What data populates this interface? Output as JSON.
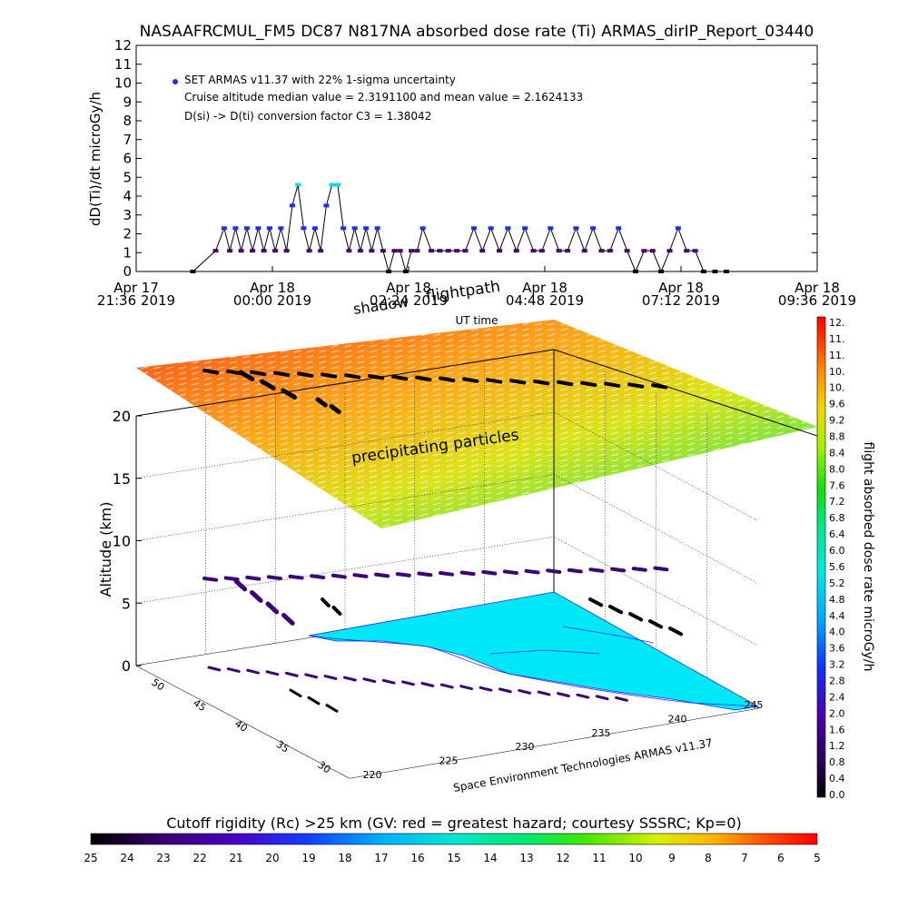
{
  "chart_data": [
    {
      "type": "scatter",
      "title": "NASAAFRCMUL_FM5 DC87 N817NA absorbed dose rate (Ti) ARMAS_dirIP_Report_03440",
      "ylabel": "dD(Ti)/dt microGy/h",
      "xlabel": "UT time",
      "ylim": [
        0,
        12
      ],
      "yticks": [
        0,
        1,
        2,
        3,
        4,
        5,
        6,
        7,
        8,
        9,
        10,
        11,
        12
      ],
      "xlim_hours": [
        0,
        12
      ],
      "xtick_labels": [
        {
          "line1": "Apr 17",
          "line2": "21:36 2019",
          "h": 0
        },
        {
          "line1": "Apr 18",
          "line2": "00:00 2019",
          "h": 2.4
        },
        {
          "line1": "Apr 18",
          "line2": "02:24 2019",
          "h": 4.8
        },
        {
          "line1": "Apr 18",
          "line2": "04:48 2019",
          "h": 7.2
        },
        {
          "line1": "Apr 18",
          "line2": "07:12 2019",
          "h": 9.6
        },
        {
          "line1": "Apr 18",
          "line2": "09:36 2019",
          "h": 12
        }
      ],
      "legend": {
        "entry": "SET ARMAS v11.37 with 22% 1-sigma uncertainty",
        "note1": "Cruise altitude median value = 2.3191100 and mean value = 2.1624133",
        "note2": "D(si) -> D(ti) conversion factor C3 = 1.38042",
        "position": "top-left"
      },
      "series": [
        {
          "x_hours": [
            1.0,
            1.4,
            1.55,
            1.65,
            1.75,
            1.85,
            1.95,
            2.05,
            2.15,
            2.25,
            2.35,
            2.45,
            2.55,
            2.65,
            2.75,
            2.85,
            2.95,
            3.05,
            3.15,
            3.25,
            3.35,
            3.45,
            3.55,
            3.65,
            3.75,
            3.85,
            3.95,
            4.05,
            4.15,
            4.25,
            4.35,
            4.45,
            4.55,
            4.65,
            4.75,
            4.85,
            4.95,
            5.05,
            5.2,
            5.35,
            5.5,
            5.65,
            5.8,
            5.95,
            6.1,
            6.25,
            6.4,
            6.55,
            6.7,
            6.85,
            7.0,
            7.15,
            7.3,
            7.45,
            7.6,
            7.75,
            7.9,
            8.05,
            8.2,
            8.35,
            8.5,
            8.65,
            8.8,
            8.95,
            9.1,
            9.25,
            9.4,
            9.55,
            9.7,
            9.85,
            10.0,
            10.2,
            10.4
          ],
          "values": [
            0,
            1.1,
            2.3,
            1.1,
            2.3,
            1.1,
            2.3,
            1.1,
            2.3,
            1.1,
            2.3,
            1.1,
            2.3,
            1.1,
            3.5,
            4.6,
            2.3,
            1.1,
            2.3,
            1.1,
            3.5,
            4.6,
            4.6,
            2.3,
            1.1,
            2.3,
            1.1,
            2.3,
            1.1,
            2.3,
            1.1,
            0,
            1.1,
            1.1,
            0,
            1.1,
            1.1,
            2.3,
            1.1,
            1.1,
            1.1,
            1.1,
            1.1,
            2.3,
            1.1,
            2.3,
            1.1,
            2.3,
            1.1,
            2.3,
            1.1,
            1.1,
            2.3,
            1.1,
            1.1,
            2.3,
            1.1,
            2.3,
            1.1,
            1.1,
            2.3,
            1.1,
            0,
            1.1,
            1.1,
            0,
            1.1,
            2.3,
            1.1,
            1.1,
            0,
            0,
            0
          ]
        }
      ]
    },
    {
      "type": "heatmap",
      "title": "",
      "annotations": [
        "shadow",
        "flightpath",
        "precipitating particles",
        "Space Environment Technologies ARMAS v11.37"
      ],
      "zlabel": "Altitude (km)",
      "zticks": [
        0,
        5,
        10,
        15,
        20
      ],
      "lat_ticks": [
        30,
        35,
        40,
        45,
        50
      ],
      "lon_ticks": [
        220,
        225,
        230,
        235,
        240,
        245
      ],
      "colorbar": {
        "label": "flight absorbed dose rate microGy/h",
        "ticks": [
          "12.",
          "11.",
          "11.",
          "10.",
          "10.",
          "9.6",
          "9.2",
          "8.8",
          "8.4",
          "8.0",
          "7.6",
          "7.2",
          "6.8",
          "6.4",
          "6.0",
          "5.6",
          "5.2",
          "4.8",
          "4.4",
          "4.0",
          "3.6",
          "3.2",
          "2.8",
          "2.4",
          "2.0",
          "1.6",
          "1.2",
          "0.8",
          "0.4",
          "0.0"
        ],
        "range": [
          0,
          12
        ]
      },
      "bottom_colorbar": {
        "label": "Cutoff rigidity (Rc) >25 km (GV: red = greatest hazard; courtesy SSSRC; Kp=0)",
        "ticks": [
          "25",
          "24",
          "23",
          "22",
          "21",
          "20",
          "19",
          "18",
          "17",
          "16",
          "15",
          "14",
          "13",
          "12",
          "11",
          "10",
          "9",
          "8",
          "7",
          "6",
          "5"
        ],
        "range": [
          25,
          5
        ]
      },
      "colors": {
        "ocean": "#00e8f8",
        "flight_track": "#3b007a",
        "shadow_track": "#000000"
      }
    }
  ]
}
